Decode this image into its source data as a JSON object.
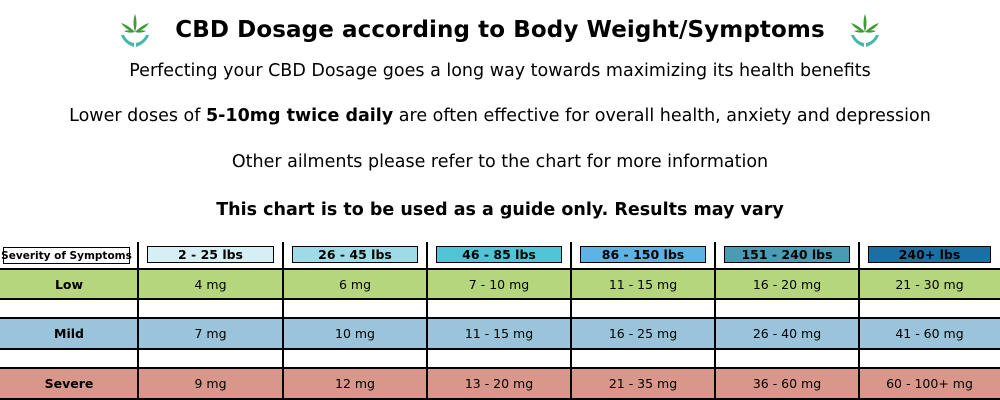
{
  "title": "CBD Dosage according to Body Weight/Symptoms",
  "intro": {
    "line1": "Perfecting your CBD Dosage goes a long way towards maximizing its health benefits",
    "line2_before": "Lower doses of ",
    "line2_bold": "5-10mg twice daily",
    "line2_after": " are often effective for overall health, anxiety and depression",
    "line3": "Other ailments please refer to the chart for more information",
    "line4": "This chart is to be used as a guide only. Results may vary"
  },
  "table": {
    "corner_label": "Severity of Symptoms",
    "columns": [
      {
        "label": "2 - 25 lbs",
        "color": "#d6eff5"
      },
      {
        "label": "26 - 45 lbs",
        "color": "#9edbe6"
      },
      {
        "label": "46 - 85 lbs",
        "color": "#4ec6d8"
      },
      {
        "label": "86 - 150 lbs",
        "color": "#5fb3e3"
      },
      {
        "label": "151 - 240 lbs",
        "color": "#4a9cb5"
      },
      {
        "label": "240+ lbs",
        "color": "#1a6fa3"
      }
    ],
    "rows": [
      {
        "label": "Low",
        "color": "#b5d67d",
        "values": [
          "4 mg",
          "6 mg",
          "7 - 10 mg",
          "11 - 15 mg",
          "16 - 20 mg",
          "21 - 30 mg"
        ]
      },
      {
        "label": "Mild",
        "color": "#99c4db",
        "values": [
          "7 mg",
          "10 mg",
          "11 - 15 mg",
          "16 - 25 mg",
          "26 - 40 mg",
          "41 - 60 mg"
        ]
      },
      {
        "label": "Severe",
        "color": "#d9968a",
        "values": [
          "9 mg",
          "12 mg",
          "13 - 20 mg",
          "21 - 35 mg",
          "36 - 60 mg",
          "60 - 100+ mg"
        ]
      }
    ]
  },
  "icons": {
    "left": "cannabis-leaf-hands-icon",
    "right": "cannabis-leaf-hands-icon"
  }
}
